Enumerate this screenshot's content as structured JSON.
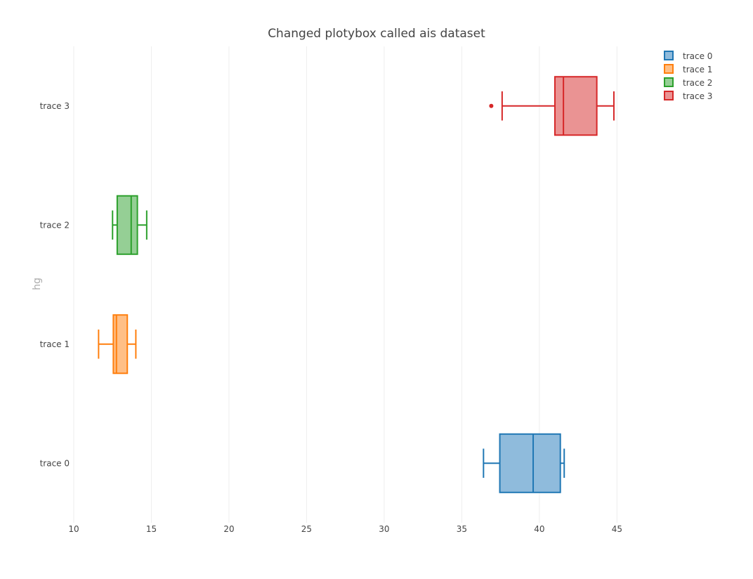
{
  "chart_data": {
    "type": "box",
    "orientation": "horizontal",
    "title": "Changed plotybox called ais dataset",
    "xlabel": "",
    "ylabel": "hg",
    "xlim": [
      10,
      49.6
    ],
    "x_ticks": [
      10,
      15,
      20,
      25,
      30,
      35,
      40,
      45
    ],
    "grid": true,
    "legend_position": "top-right",
    "series": [
      {
        "name": "trace 0",
        "color": "#1f77b4",
        "fill": "#8fbbdc",
        "min": 36.4,
        "q1": 37.45,
        "median": 39.6,
        "q3": 41.35,
        "max": 41.6,
        "outliers": []
      },
      {
        "name": "trace 1",
        "color": "#ff7f0e",
        "fill": "#ffbf86",
        "min": 11.6,
        "q1": 12.55,
        "median": 12.75,
        "q3": 13.45,
        "max": 14.0,
        "outliers": []
      },
      {
        "name": "trace 2",
        "color": "#2ca02c",
        "fill": "#95cf95",
        "min": 12.5,
        "q1": 12.8,
        "median": 13.7,
        "q3": 14.1,
        "max": 14.7,
        "outliers": []
      },
      {
        "name": "trace 3",
        "color": "#d62728",
        "fill": "#ea9393",
        "min": 37.6,
        "q1": 41.0,
        "median": 41.55,
        "q3": 43.7,
        "max": 44.8,
        "outliers": [
          36.9
        ]
      }
    ]
  }
}
